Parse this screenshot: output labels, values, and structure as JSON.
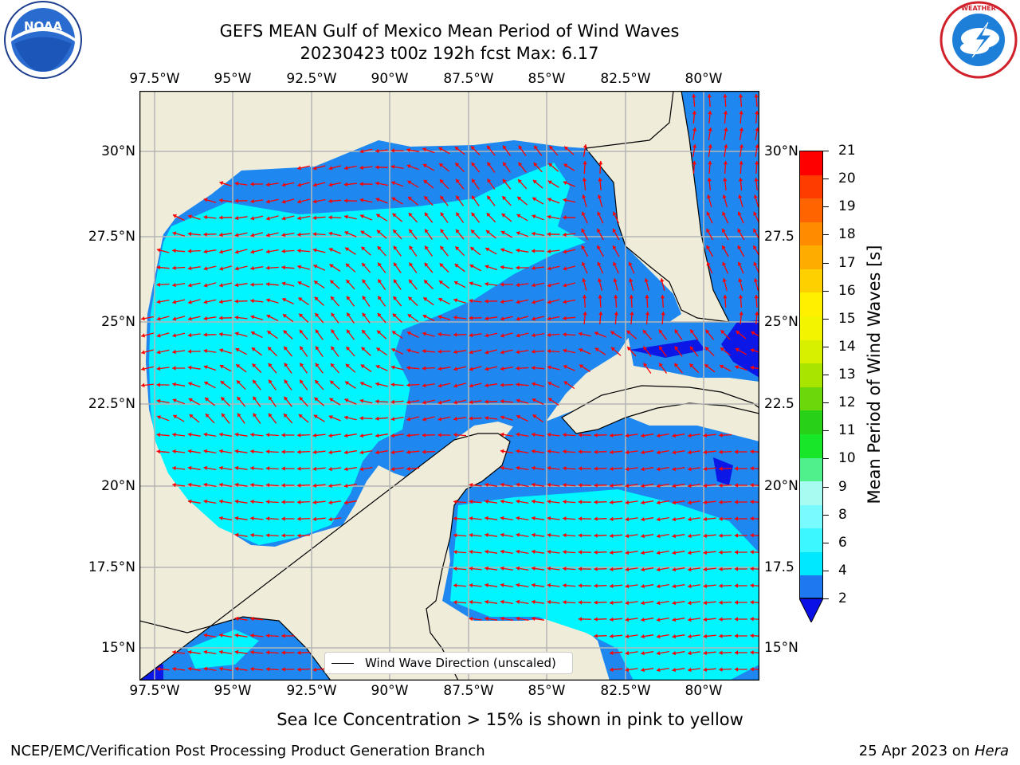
{
  "header": {
    "title_line1": "GEFS MEAN Gulf of Mexico Mean Period of Wind Waves",
    "title_line2": "20230423 t00z 192h fcst   Max: 6.17"
  },
  "logos": {
    "noara_text": "NOAA",
    "nws_text": "NATIONAL WEATHER SERVICE"
  },
  "map": {
    "lon_ticks": [
      "97.5°W",
      "95°W",
      "92.5°W",
      "90°W",
      "87.5°W",
      "85°W",
      "82.5°W",
      "80°W"
    ],
    "lat_ticks_left": [
      "30°N",
      "27.5°N",
      "25°N",
      "22.5°N",
      "20°N",
      "17.5°N",
      "15°N"
    ],
    "lat_ticks_right": [
      "30°N",
      "27.5",
      "25°N",
      "22.5",
      "20°N",
      "17.5",
      "15°N"
    ],
    "legend_label": "Wind Wave Direction (unscaled)",
    "colors": {
      "land": "#efecda",
      "ocean_2_4": "#1e88f0",
      "ocean_4_6": "#00f5ff",
      "ocean_lt2": "#0a17e6",
      "arrow": "#ff0000",
      "grid": "#b5b5b5"
    }
  },
  "colorbar": {
    "label": "Mean Period of Wind Waves [s]",
    "ticks": [
      "21",
      "20",
      "19",
      "18",
      "17",
      "16",
      "15",
      "14",
      "13",
      "12",
      "11",
      "10",
      "9",
      "8",
      "6",
      "4",
      "2"
    ],
    "colors_bottom_to_top": [
      "#1e78f0",
      "#00e8ff",
      "#3cf7ff",
      "#78faff",
      "#a7fbf0",
      "#50f08c",
      "#18e628",
      "#28d018",
      "#6cd80c",
      "#a8e400",
      "#d6f000",
      "#f2f400",
      "#fff000",
      "#ffd000",
      "#ffac00",
      "#ff8c00",
      "#ff6400",
      "#ff3c00",
      "#ff0000"
    ],
    "extend_color": "#0a10e6"
  },
  "footer": {
    "sea_ice_note": "Sea Ice Concentration > 15% is shown in pink to yellow",
    "branch": "NCEP/EMC/Verification Post Processing Product Generation Branch",
    "date": "25 Apr 2023 on ",
    "host": "Hera"
  }
}
